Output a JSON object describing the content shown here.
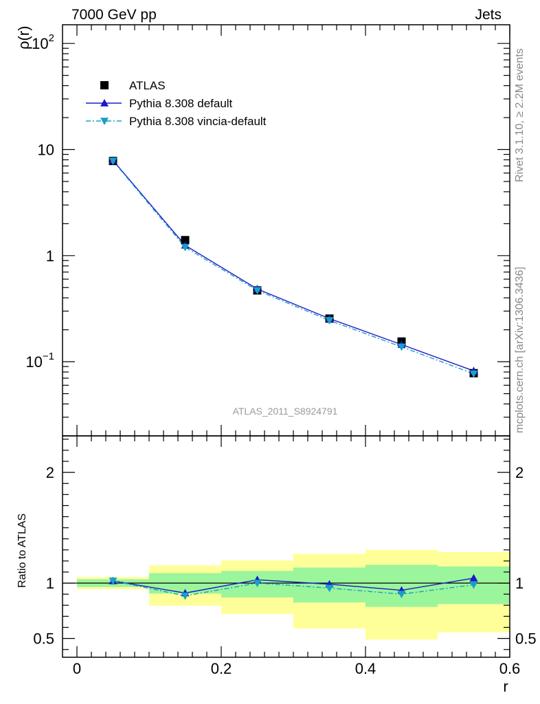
{
  "header": {
    "left": "7000 GeV pp",
    "right": "Jets"
  },
  "side_labels": {
    "rivet": "Rivet 3.1.10, ≥ 2.2M events",
    "mcplots": "mcplots.cern.ch [arXiv:1306.3436]"
  },
  "annotation": "ATLAS_2011_S8924791",
  "colors": {
    "data": "#000000",
    "default": "#1a1ac8",
    "vincia": "#1a9fc8",
    "band_inner": "#9bf59b",
    "band_outer": "#ffff99"
  },
  "chart_data": [
    {
      "type": "line",
      "panel": "main",
      "ylabel": "ρ(r)",
      "yscale": "log",
      "ylim": [
        0.02,
        150
      ],
      "xlim": [
        -0.02,
        0.6
      ],
      "y_tick_labels": [
        {
          "value": 100,
          "base": "10",
          "exp": "2"
        },
        {
          "value": 10,
          "base": "10",
          "exp": ""
        },
        {
          "value": 1,
          "base": "1",
          "exp": ""
        },
        {
          "value": 0.1,
          "base": "10",
          "exp": "−1"
        }
      ],
      "x": [
        0.05,
        0.15,
        0.25,
        0.35,
        0.45,
        0.55
      ],
      "legend_position": "top-left",
      "series": [
        {
          "name": "ATLAS",
          "key": "atlas",
          "marker": "square",
          "values": [
            7.8,
            1.4,
            0.47,
            0.255,
            0.155,
            0.078
          ]
        },
        {
          "name": "Pythia 8.308 default",
          "key": "default",
          "marker": "triangle-up",
          "values": [
            7.9,
            1.25,
            0.485,
            0.255,
            0.145,
            0.082
          ]
        },
        {
          "name": "Pythia 8.308 vincia-default",
          "key": "vincia",
          "marker": "triangle-down",
          "values": [
            7.8,
            1.2,
            0.47,
            0.245,
            0.138,
            0.077
          ]
        }
      ]
    },
    {
      "type": "line",
      "panel": "ratio",
      "xlabel": "r",
      "ylabel": "Ratio to ATLAS",
      "ylim": [
        0.33,
        2.33
      ],
      "xlim": [
        -0.02,
        0.6
      ],
      "x_tick_labels": [
        "0",
        "0.2",
        "0.4",
        "0.6"
      ],
      "x_ticks": [
        0,
        0.2,
        0.4,
        0.6
      ],
      "y_tick_labels": [
        "0.5",
        "1",
        "2"
      ],
      "y_ticks": [
        0.5,
        1,
        2
      ],
      "bins": [
        {
          "lo": 0.0,
          "hi": 0.1,
          "inner": [
            0.965,
            1.035
          ],
          "outer": [
            0.945,
            1.055
          ]
        },
        {
          "lo": 0.1,
          "hi": 0.2,
          "inner": [
            0.905,
            1.09
          ],
          "outer": [
            0.795,
            1.16
          ]
        },
        {
          "lo": 0.2,
          "hi": 0.3,
          "inner": [
            0.87,
            1.11
          ],
          "outer": [
            0.72,
            1.205
          ]
        },
        {
          "lo": 0.3,
          "hi": 0.4,
          "inner": [
            0.825,
            1.14
          ],
          "outer": [
            0.59,
            1.265
          ]
        },
        {
          "lo": 0.4,
          "hi": 0.5,
          "inner": [
            0.785,
            1.165
          ],
          "outer": [
            0.49,
            1.3
          ]
        },
        {
          "lo": 0.5,
          "hi": 0.6,
          "inner": [
            0.81,
            1.15
          ],
          "outer": [
            0.555,
            1.28
          ]
        }
      ],
      "x": [
        0.05,
        0.15,
        0.25,
        0.35,
        0.45,
        0.55
      ],
      "series": [
        {
          "name": "Pythia 8.308 default",
          "key": "default",
          "marker": "triangle-up",
          "values": [
            1.02,
            0.91,
            1.03,
            0.99,
            0.935,
            1.045
          ]
        },
        {
          "name": "Pythia 8.308 vincia-default",
          "key": "vincia",
          "marker": "triangle-down",
          "values": [
            1.02,
            0.885,
            1.0,
            0.955,
            0.9,
            0.985
          ]
        }
      ]
    }
  ]
}
